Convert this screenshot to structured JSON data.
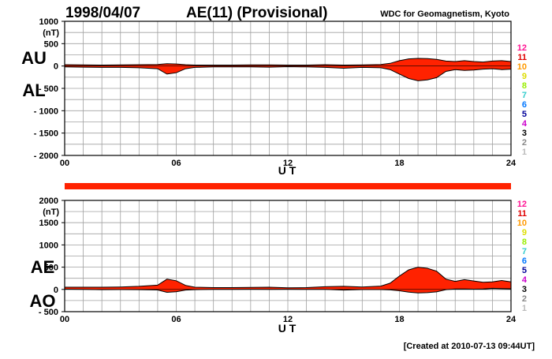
{
  "header": {
    "date": "1998/04/07",
    "index_title": "AE(11) (Provisional)",
    "source": "WDC for Geomagnetism, Kyoto"
  },
  "footer": {
    "created": "[Created at 2010-07-13 09:44UT]"
  },
  "colors": {
    "fill": "#ff2200",
    "grid": "#a0a0a0",
    "station_bar": "#ff2200"
  },
  "legend": {
    "items": [
      {
        "label": "12",
        "color": "#ff1493"
      },
      {
        "label": "11",
        "color": "#e00000"
      },
      {
        "label": "10",
        "color": "#ff9900"
      },
      {
        "label": "9",
        "color": "#dddd00"
      },
      {
        "label": "8",
        "color": "#99ee00"
      },
      {
        "label": "7",
        "color": "#33cccc"
      },
      {
        "label": "6",
        "color": "#0077ff"
      },
      {
        "label": "5",
        "color": "#000099"
      },
      {
        "label": "4",
        "color": "#cc00cc"
      },
      {
        "label": "3",
        "color": "#000000"
      },
      {
        "label": "2",
        "color": "#888888"
      },
      {
        "label": "1",
        "color": "#bbbbbb"
      }
    ]
  },
  "chart_data": [
    {
      "type": "area",
      "panel": "AU / AL",
      "ylabel_upper": "AU",
      "ylabel_lower": "AL",
      "unit": "(nT)",
      "xlabel": "U T",
      "xlim": [
        0,
        24
      ],
      "ylim": [
        -2000,
        1000
      ],
      "yticks": [
        1000,
        500,
        0,
        -500,
        -1000,
        -1500,
        -2000
      ],
      "ytick_labels": [
        "1000",
        "500",
        "0",
        "- 500",
        "- 1000",
        "- 1500",
        "- 2000"
      ],
      "xticks": [
        0,
        6,
        12,
        18,
        24
      ],
      "xtick_labels": [
        "00",
        "06",
        "12",
        "18",
        "24"
      ],
      "grid": true,
      "series": [
        {
          "name": "AU",
          "x": [
            0,
            1,
            2,
            3,
            4,
            5,
            5.5,
            6,
            6.5,
            7,
            8,
            9,
            10,
            11,
            12,
            13,
            14,
            15,
            16,
            17,
            17.5,
            18,
            18.5,
            19,
            19.5,
            20,
            20.5,
            21,
            21.5,
            22,
            22.5,
            23,
            23.5,
            24
          ],
          "values": [
            30,
            25,
            20,
            25,
            30,
            35,
            50,
            45,
            30,
            20,
            20,
            20,
            25,
            25,
            20,
            20,
            30,
            20,
            25,
            35,
            60,
            120,
            160,
            170,
            165,
            150,
            110,
            100,
            120,
            100,
            90,
            110,
            120,
            100
          ]
        },
        {
          "name": "AL",
          "x": [
            0,
            1,
            2,
            3,
            4,
            5,
            5.5,
            6,
            6.5,
            7,
            8,
            9,
            10,
            11,
            12,
            13,
            14,
            15,
            16,
            17,
            17.5,
            18,
            18.5,
            19,
            19.5,
            20,
            20.5,
            21,
            21.5,
            22,
            22.5,
            23,
            23.5,
            24
          ],
          "values": [
            -20,
            -25,
            -30,
            -30,
            -40,
            -60,
            -180,
            -150,
            -60,
            -30,
            -20,
            -20,
            -20,
            -25,
            -15,
            -20,
            -30,
            -50,
            -30,
            -40,
            -80,
            -180,
            -280,
            -330,
            -310,
            -260,
            -120,
            -80,
            -100,
            -90,
            -70,
            -60,
            -80,
            -70
          ]
        }
      ]
    },
    {
      "type": "area",
      "panel": "AE / AO",
      "ylabel_upper": "AE",
      "ylabel_lower": "AO",
      "unit": "(nT)",
      "xlabel": "U T",
      "xlim": [
        0,
        24
      ],
      "ylim": [
        -500,
        2000
      ],
      "yticks": [
        2000,
        1500,
        1000,
        500,
        0,
        -500
      ],
      "ytick_labels": [
        "2000",
        "1500",
        "1000",
        "500",
        "0",
        "- 500"
      ],
      "xticks": [
        0,
        6,
        12,
        18,
        24
      ],
      "xtick_labels": [
        "00",
        "06",
        "12",
        "18",
        "24"
      ],
      "grid": true,
      "series": [
        {
          "name": "AE",
          "x": [
            0,
            1,
            2,
            3,
            4,
            5,
            5.5,
            6,
            6.5,
            7,
            8,
            9,
            10,
            11,
            12,
            13,
            14,
            15,
            16,
            17,
            17.5,
            18,
            18.5,
            19,
            19.5,
            20,
            20.5,
            21,
            21.5,
            22,
            22.5,
            23,
            23.5,
            24
          ],
          "values": [
            50,
            50,
            50,
            55,
            70,
            95,
            230,
            195,
            90,
            50,
            40,
            40,
            45,
            50,
            35,
            40,
            60,
            70,
            55,
            75,
            140,
            300,
            440,
            500,
            475,
            410,
            230,
            180,
            220,
            190,
            160,
            170,
            200,
            170
          ]
        },
        {
          "name": "AO",
          "x": [
            0,
            1,
            2,
            3,
            4,
            5,
            5.5,
            6,
            6.5,
            7,
            8,
            9,
            10,
            11,
            12,
            13,
            14,
            15,
            16,
            17,
            17.5,
            18,
            18.5,
            19,
            19.5,
            20,
            20.5,
            21,
            21.5,
            22,
            22.5,
            23,
            23.5,
            24
          ],
          "values": [
            5,
            0,
            -5,
            -3,
            -5,
            -13,
            -65,
            -53,
            -15,
            -5,
            0,
            0,
            3,
            0,
            3,
            0,
            0,
            -15,
            -3,
            -3,
            -10,
            -30,
            -60,
            -80,
            -72,
            -55,
            -5,
            10,
            10,
            5,
            10,
            25,
            20,
            15
          ]
        }
      ]
    }
  ]
}
